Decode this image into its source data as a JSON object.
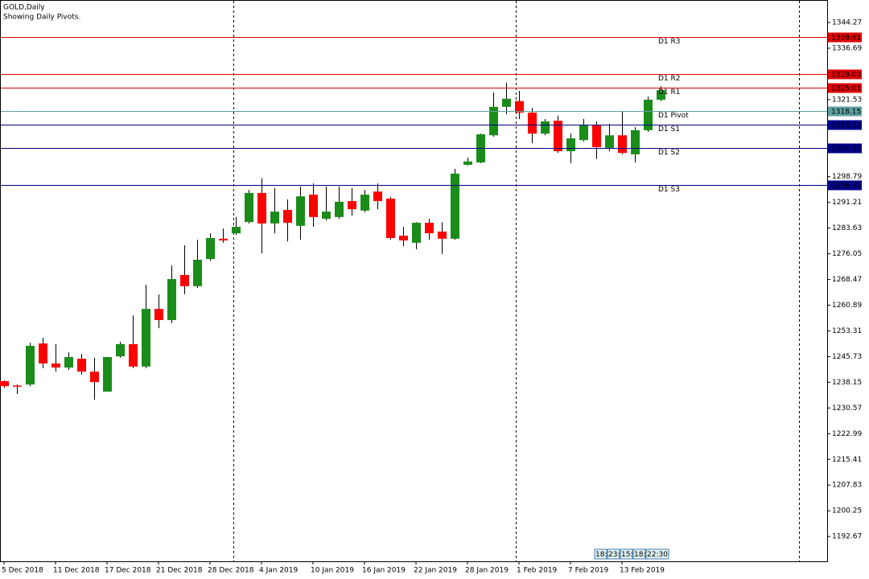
{
  "chart_data": {
    "type": "candlestick",
    "title": "GOLD,Daily",
    "subtitle": "Showing Daily Pivots.",
    "categories": [
      "5 Dec 2018",
      null,
      null,
      null,
      "11 Dec 2018",
      null,
      null,
      null,
      "17 Dec 2018",
      null,
      null,
      null,
      "21 Dec 2018",
      null,
      null,
      null,
      "28 Dec 2018",
      null,
      null,
      null,
      "4 Jan 2019",
      null,
      null,
      null,
      "10 Jan 2019",
      null,
      null,
      null,
      "16 Jan 2019",
      null,
      null,
      null,
      "22 Jan 2019",
      null,
      null,
      null,
      "28 Jan 2019",
      null,
      null,
      null,
      "1 Feb 2019",
      null,
      null,
      null,
      "7 Feb 2019",
      null,
      null,
      null,
      "13 Feb 2019",
      null,
      null,
      null
    ],
    "open": [
      1238.5,
      1237.2,
      1237.5,
      1249.6,
      1243.7,
      1242.5,
      1245.1,
      1241.3,
      1235.4,
      1245.8,
      1249.4,
      1242.8,
      1259.8,
      1256.5,
      1269.8,
      1266.5,
      1274.5,
      1280.5,
      1282.1,
      1285.4,
      1294.0,
      1285.0,
      1289.0,
      1284.3,
      1293.5,
      1286.4,
      1286.9,
      1291.6,
      1288.8,
      1294.4,
      1292.3,
      1281.4,
      1279.3,
      1285.2,
      1282.6,
      1280.5,
      1302.3,
      1303.0,
      1311.0,
      1319.4,
      1321.1,
      1317.7,
      1311.5,
      1315.3,
      1306.3,
      1309.6,
      1314.1,
      1307.3,
      1311.0,
      1305.4,
      1312.5,
      1321.5
    ],
    "high": [
      1238.7,
      1237.5,
      1249.8,
      1251.3,
      1249.4,
      1247.0,
      1246.5,
      1245.4,
      1245.6,
      1250.1,
      1257.9,
      1266.9,
      1264.1,
      1272.6,
      1278.6,
      1280.2,
      1282.1,
      1283.5,
      1286.9,
      1294.9,
      1298.3,
      1295.4,
      1292.1,
      1295.9,
      1296.8,
      1295.9,
      1295.9,
      1295.4,
      1294.9,
      1296.8,
      1292.8,
      1284.0,
      1285.4,
      1286.4,
      1285.4,
      1301.1,
      1304.4,
      1311.5,
      1323.6,
      1326.5,
      1324.1,
      1319.1,
      1315.8,
      1316.8,
      1311.5,
      1315.8,
      1315.1,
      1314.4,
      1318.2,
      1313.4,
      1322.4,
      1325.5
    ],
    "low": [
      1236.5,
      1234.7,
      1237.0,
      1242.3,
      1241.3,
      1241.8,
      1240.4,
      1233.0,
      1235.4,
      1245.4,
      1242.3,
      1242.3,
      1254.1,
      1255.6,
      1264.1,
      1266.0,
      1274.0,
      1279.3,
      1281.6,
      1285.0,
      1276.2,
      1282.1,
      1279.7,
      1280.2,
      1284.0,
      1285.9,
      1286.4,
      1287.3,
      1288.3,
      1289.2,
      1280.2,
      1278.3,
      1277.4,
      1280.2,
      1276.0,
      1280.2,
      1302.1,
      1302.8,
      1310.6,
      1317.2,
      1315.8,
      1308.7,
      1311.0,
      1305.8,
      1302.8,
      1309.2,
      1304.0,
      1306.3,
      1305.4,
      1303.0,
      1312.0,
      1321.1
    ],
    "close": [
      1237.0,
      1236.9,
      1248.9,
      1243.7,
      1242.5,
      1245.6,
      1241.3,
      1238.2,
      1245.6,
      1249.4,
      1242.8,
      1259.8,
      1256.5,
      1268.6,
      1266.5,
      1274.3,
      1280.7,
      1280.0,
      1284.0,
      1294.0,
      1285.0,
      1288.5,
      1285.2,
      1293.0,
      1286.9,
      1288.5,
      1291.4,
      1289.2,
      1293.5,
      1291.6,
      1280.7,
      1280.0,
      1285.2,
      1282.1,
      1280.5,
      1299.7,
      1303.3,
      1311.3,
      1319.4,
      1321.8,
      1317.7,
      1311.5,
      1315.1,
      1306.3,
      1310.1,
      1314.1,
      1307.5,
      1311.0,
      1305.8,
      1312.5,
      1321.5,
      1324.3
    ],
    "up_color": "#1a8c1a",
    "down_color": "#ff0000",
    "ylim": [
      1185.35,
      1350.91
    ],
    "yticks": [
      1344.27,
      1336.69,
      1321.53,
      1306.37,
      1298.79,
      1291.21,
      1283.63,
      1276.05,
      1268.47,
      1260.89,
      1253.31,
      1245.73,
      1238.15,
      1230.57,
      1222.99,
      1215.41,
      1207.83,
      1200.25,
      1192.67
    ],
    "pivots": [
      {
        "name": "D1 R3",
        "value": 1339.91,
        "color": "#e00000"
      },
      {
        "name": "D1 R2",
        "value": 1329.03,
        "color": "#e00000"
      },
      {
        "name": "D1 R1",
        "value": 1325.01,
        "color": "#e00000"
      },
      {
        "name": "D1 Pivot",
        "value": 1318.15,
        "color": "#5f9ea0"
      },
      {
        "name": "D1 S1",
        "value": 1314.13,
        "color": "#00008b"
      },
      {
        "name": "D1 S2",
        "value": 1307.27,
        "color": "#00008b"
      },
      {
        "name": "D1 S3",
        "value": 1296.39,
        "color": "#00008b"
      }
    ],
    "annotations": [
      "18:",
      "23:",
      "15:",
      "18:",
      "22:30"
    ]
  }
}
